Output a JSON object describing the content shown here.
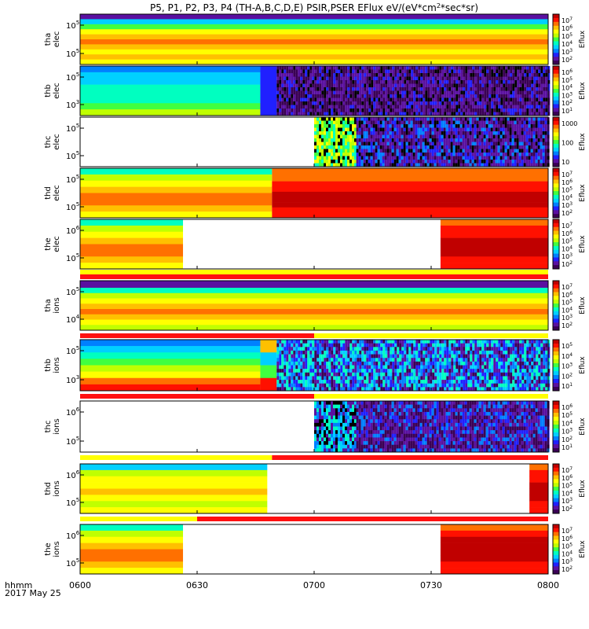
{
  "chart_data": {
    "type": "heatmap",
    "title": "P5, P1, P2, P3, P4 (TH-A,B,C,D,E) PSIR,PSER EFlux eV/(eV*cm",
    "title_sup": "2",
    "title_tail": "*sec*sr)",
    "time_label": "hhmm",
    "date_label": "2017 May 25",
    "x_ticks": [
      "0600",
      "0630",
      "0700",
      "0730",
      "0800"
    ],
    "x_range": [
      "06:00",
      "08:00"
    ],
    "colorbar_label": "Eflux",
    "panels": [
      {
        "probe": "tha",
        "species": "elec",
        "y_ticks": [
          "10",
          "10"
        ],
        "y_exp": [
          "5",
          "5"
        ],
        "colorbar_ticks": [
          "7",
          "6",
          "5",
          "4",
          "3",
          "2"
        ]
      },
      {
        "probe": "thb",
        "species": "elec",
        "y_ticks": [
          "10",
          "10"
        ],
        "y_exp": [
          "5",
          "3"
        ],
        "colorbar_ticks": [
          "6",
          "5",
          "4",
          "3",
          "2",
          "1"
        ]
      },
      {
        "probe": "thc",
        "species": "elec",
        "y_ticks": [
          "10",
          "10"
        ],
        "y_exp": [
          "5",
          "5"
        ],
        "colorbar_ticks_plain": [
          "1000",
          "100",
          "10"
        ]
      },
      {
        "probe": "thd",
        "species": "elec",
        "y_ticks": [
          "10",
          "10"
        ],
        "y_exp": [
          "5",
          "5"
        ],
        "colorbar_ticks": [
          "7",
          "6",
          "5",
          "4",
          "3",
          "2"
        ]
      },
      {
        "probe": "the",
        "species": "elec",
        "y_ticks": [
          "10",
          "10"
        ],
        "y_exp": [
          "6",
          "5"
        ],
        "colorbar_ticks": [
          "7",
          "6",
          "5",
          "4",
          "3",
          "2"
        ]
      },
      {
        "probe": "tha",
        "species": "ions",
        "y_ticks": [
          "10",
          "10"
        ],
        "y_exp": [
          "5",
          "4"
        ],
        "colorbar_ticks": [
          "7",
          "6",
          "5",
          "4",
          "3",
          "2"
        ]
      },
      {
        "probe": "thb",
        "species": "ions",
        "y_ticks": [
          "10",
          "10"
        ],
        "y_exp": [
          "5",
          "3"
        ],
        "colorbar_ticks": [
          "5",
          "4",
          "3",
          "2",
          "1"
        ]
      },
      {
        "probe": "thc",
        "species": "ions",
        "y_ticks": [
          "10",
          "10"
        ],
        "y_exp": [
          "6",
          "5"
        ],
        "colorbar_ticks": [
          "6",
          "5",
          "4",
          "3",
          "2",
          "1"
        ]
      },
      {
        "probe": "thd",
        "species": "ions",
        "y_ticks": [
          "10",
          "10"
        ],
        "y_exp": [
          "6",
          "5"
        ],
        "colorbar_ticks": [
          "7",
          "6",
          "5",
          "4",
          "3",
          "2"
        ]
      },
      {
        "probe": "the",
        "species": "ions",
        "y_ticks": [
          "10",
          "10"
        ],
        "y_exp": [
          "6",
          "5"
        ],
        "colorbar_ticks": [
          "7",
          "6",
          "5",
          "4",
          "3",
          "2"
        ]
      }
    ]
  },
  "colors": {
    "spectrum": [
      "#ffffff",
      "#3a0055",
      "#5a10a0",
      "#2020ff",
      "#0080ff",
      "#00d0ff",
      "#00ffc0",
      "#40ff40",
      "#c0ff00",
      "#ffff00",
      "#ffc000",
      "#ff7000",
      "#ff1000",
      "#c00000"
    ],
    "bar_red": "#ff1010",
    "bar_yellow": "#ffff00",
    "fill_white": "#ffffff"
  }
}
